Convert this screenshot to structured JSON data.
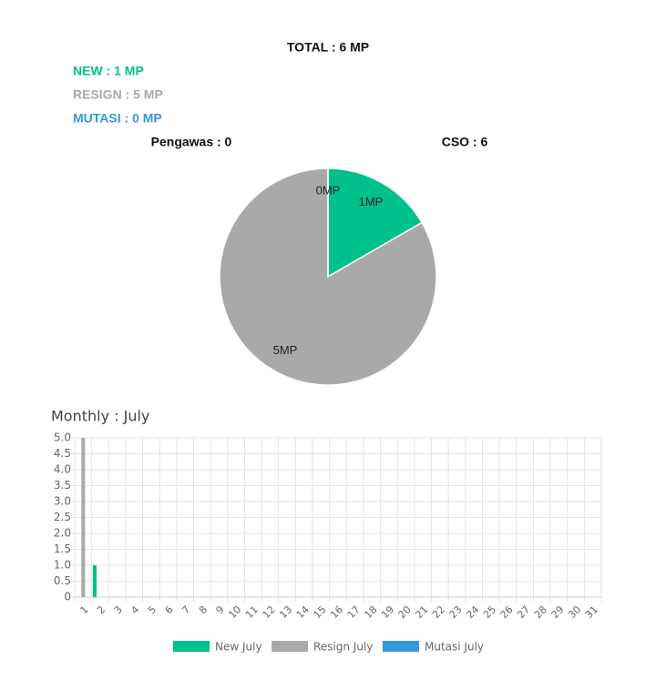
{
  "header": {
    "total": "TOTAL : 6 MP",
    "new": "NEW : 1 MP",
    "resign": "RESIGN : 5 MP",
    "mutasi": "MUTASI : 0 MP",
    "pengawas": "Pengawas : 0",
    "cso": "CSO : 6"
  },
  "chart_data": [
    {
      "type": "pie",
      "values": [
        1,
        5,
        0
      ],
      "value_labels": [
        "1MP",
        "5MP",
        "0MP"
      ],
      "colors": [
        "#00c08b",
        "#a9a9a9",
        "#3498db"
      ]
    },
    {
      "type": "bar",
      "title": "Monthly : July",
      "categories": [
        "1",
        "2",
        "3",
        "4",
        "5",
        "6",
        "7",
        "8",
        "9",
        "10",
        "11",
        "12",
        "13",
        "14",
        "15",
        "16",
        "17",
        "18",
        "19",
        "20",
        "21",
        "22",
        "23",
        "24",
        "25",
        "26",
        "27",
        "28",
        "29",
        "30",
        "31"
      ],
      "series": [
        {
          "name": "New July",
          "color": "#00c08b",
          "values": [
            0,
            1,
            0,
            0,
            0,
            0,
            0,
            0,
            0,
            0,
            0,
            0,
            0,
            0,
            0,
            0,
            0,
            0,
            0,
            0,
            0,
            0,
            0,
            0,
            0,
            0,
            0,
            0,
            0,
            0,
            0
          ]
        },
        {
          "name": "Resign July",
          "color": "#a9a9a9",
          "values": [
            5,
            0,
            0,
            0,
            0,
            0,
            0,
            0,
            0,
            0,
            0,
            0,
            0,
            0,
            0,
            0,
            0,
            0,
            0,
            0,
            0,
            0,
            0,
            0,
            0,
            0,
            0,
            0,
            0,
            0,
            0
          ]
        },
        {
          "name": "Mutasi July",
          "color": "#3498db",
          "values": [
            0,
            0,
            0,
            0,
            0,
            0,
            0,
            0,
            0,
            0,
            0,
            0,
            0,
            0,
            0,
            0,
            0,
            0,
            0,
            0,
            0,
            0,
            0,
            0,
            0,
            0,
            0,
            0,
            0,
            0,
            0
          ]
        }
      ],
      "ylim": [
        0,
        5
      ],
      "yticks": [
        0,
        0.5,
        {
          "value": 1,
          "label": "1.0"
        },
        1.5,
        {
          "value": 2,
          "label": "2.0"
        },
        2.5,
        {
          "value": 3,
          "label": "3.0"
        },
        3.5,
        {
          "value": 4,
          "label": "4.0"
        },
        4.5,
        {
          "value": 5,
          "label": "5.0"
        }
      ],
      "grid": true
    }
  ]
}
